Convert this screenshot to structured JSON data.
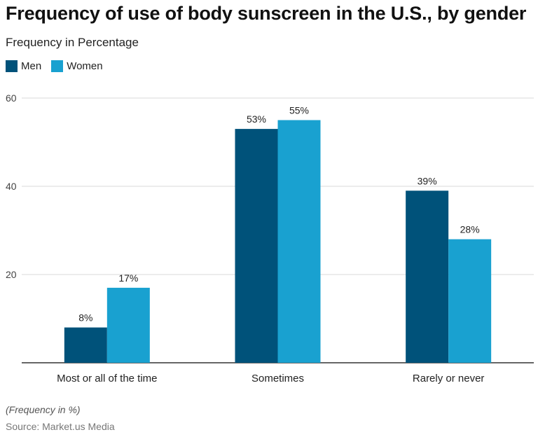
{
  "title": "Frequency of use of body sunscreen in the U.S., by gender",
  "subtitle": "Frequency in Percentage",
  "footer": {
    "note": "(Frequency in %)",
    "source": "Source: Market.us Media"
  },
  "colors": {
    "men": "#00527a",
    "women": "#19a1d0",
    "grid": "#d9d9d9",
    "axis": "#333333"
  },
  "chart_data": {
    "type": "bar",
    "title": "Frequency of use of body sunscreen in the U.S., by gender",
    "subtitle": "Frequency in Percentage",
    "categories": [
      "Most or all of the time",
      "Sometimes",
      "Rarely or never"
    ],
    "series": [
      {
        "name": "Men",
        "values": [
          8,
          53,
          39
        ],
        "labels": [
          "8%",
          "53%",
          "39%"
        ]
      },
      {
        "name": "Women",
        "values": [
          17,
          55,
          28
        ],
        "labels": [
          "17%",
          "55%",
          "28%"
        ]
      }
    ],
    "ylim": [
      0,
      60
    ],
    "yticks": [
      20,
      40,
      60
    ],
    "ytick_labels": [
      "20",
      "40",
      "60"
    ],
    "grid": true,
    "legend": "top-left",
    "xlabel": "",
    "ylabel": ""
  }
}
